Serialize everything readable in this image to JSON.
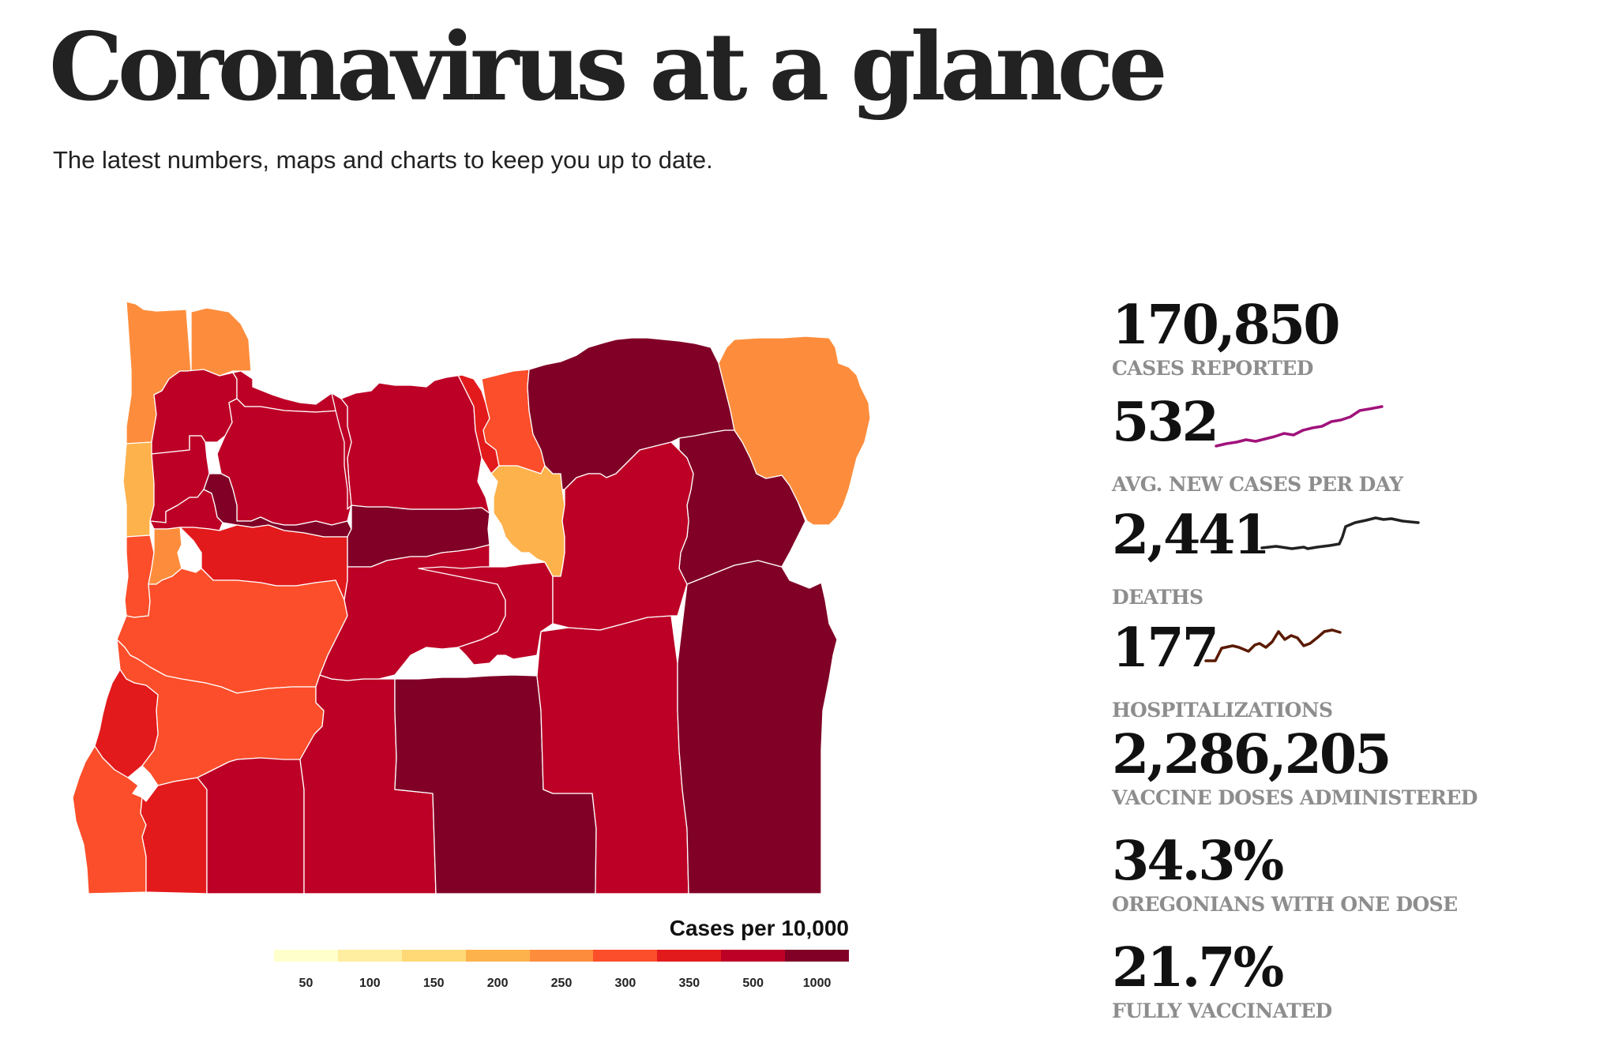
{
  "header": {
    "title": "Coronavirus at a glance",
    "subtitle": "The latest numbers, maps and charts to keep you up to date."
  },
  "map": {
    "legend_title": "Cases per 10,000",
    "legend": [
      {
        "label": "50",
        "color": "#ffffcc"
      },
      {
        "label": "100",
        "color": "#ffeda0"
      },
      {
        "label": "150",
        "color": "#fed976"
      },
      {
        "label": "200",
        "color": "#feb24c"
      },
      {
        "label": "250",
        "color": "#fd8d3c"
      },
      {
        "label": "300",
        "color": "#fc4e2a"
      },
      {
        "label": "350",
        "color": "#e31a1c"
      },
      {
        "label": "500",
        "color": "#bd0026"
      },
      {
        "label": "1000",
        "color": "#800026"
      }
    ]
  },
  "stats": [
    {
      "value": "170,850",
      "label": "CASES REPORTED"
    },
    {
      "value": "532",
      "label": "AVG. NEW CASES PER DAY",
      "spark_color": "#a0127a"
    },
    {
      "value": "2,441",
      "label": "DEATHS",
      "spark_color": "#222222"
    },
    {
      "value": "177",
      "label": "HOSPITALIZATIONS",
      "spark_color": "#5a1a00"
    },
    {
      "value": "2,286,205",
      "label": "VACCINE DOSES ADMINISTERED"
    },
    {
      "value": "34.3%",
      "label": "OREGONIANS WITH ONE DOSE"
    },
    {
      "value": "21.7%",
      "label": "FULLY VACCINATED"
    }
  ]
}
